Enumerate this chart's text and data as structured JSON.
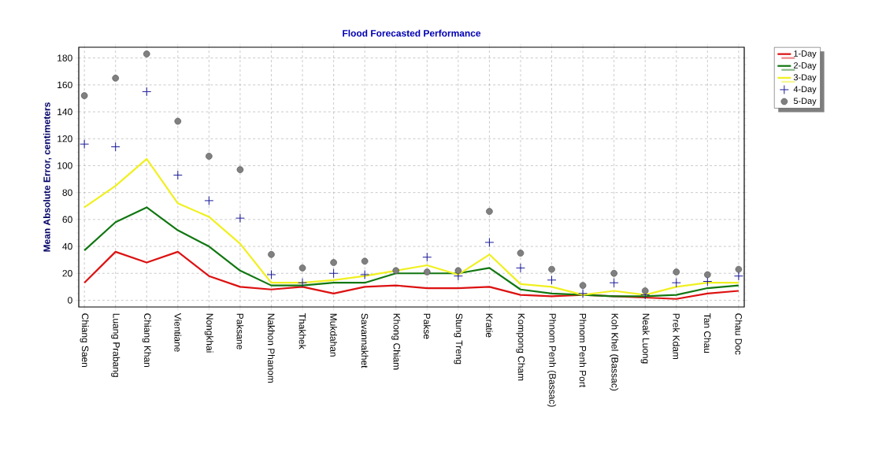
{
  "chart_data": {
    "type": "line",
    "title": "Flood Forecasted Performance",
    "ylabel": "Mean Absolute Error, centimeters",
    "categories": [
      "Chiang Saen",
      "Luang Prabang",
      "Chiang Khan",
      "Vientiane",
      "Nongkhai",
      "Paksane",
      "Nakhon Phanom",
      "Thakhek",
      "Mukdahan",
      "Savannakhet",
      "Khong Chiam",
      "Pakse",
      "Stung Treng",
      "Kratie",
      "Kompong Cham",
      "Phnom Penh (Bassac)",
      "Phnom Penh Port",
      "Koh Khel (Bassac)",
      "Neak Luong",
      "Prek Kdam",
      "Tan Chau",
      "Chau Doc"
    ],
    "series": [
      {
        "name": "1-Day",
        "color": "#dd1111",
        "values": [
          13,
          36,
          28,
          36,
          18,
          10,
          8,
          10,
          5,
          10,
          11,
          9,
          9,
          10,
          4,
          3,
          4,
          3,
          2,
          1,
          5,
          7
        ]
      },
      {
        "name": "2-Day",
        "color": "#117711",
        "values": [
          37,
          58,
          69,
          52,
          40,
          22,
          11,
          11,
          13,
          13,
          20,
          20,
          20,
          24,
          8,
          5,
          4,
          3,
          3,
          4,
          9,
          11
        ]
      },
      {
        "name": "3-Day",
        "color": "#f0f020",
        "values": [
          69,
          85,
          105,
          72,
          62,
          42,
          13,
          13,
          15,
          18,
          22,
          26,
          19,
          34,
          12,
          10,
          4,
          7,
          4,
          10,
          13,
          13
        ]
      },
      {
        "name": "4-Day",
        "color": "#1a1a9a",
        "type": "scatter",
        "marker": "cross",
        "values": [
          116,
          114,
          155,
          93,
          74,
          61,
          19,
          13,
          20,
          19,
          null,
          32,
          18,
          43,
          24,
          15,
          5,
          13,
          4,
          13,
          14,
          18
        ]
      },
      {
        "name": "5-Day",
        "color": "#808080",
        "type": "scatter",
        "marker": "circle",
        "values": [
          152,
          165,
          183,
          133,
          107,
          97,
          34,
          24,
          28,
          29,
          22,
          21,
          22,
          66,
          35,
          23,
          11,
          20,
          7,
          21,
          19,
          23
        ]
      }
    ],
    "ylim": [
      -5,
      188
    ],
    "yticks": [
      0,
      20,
      40,
      60,
      80,
      100,
      120,
      140,
      160,
      180
    ],
    "grid": true,
    "legend": "top right"
  }
}
